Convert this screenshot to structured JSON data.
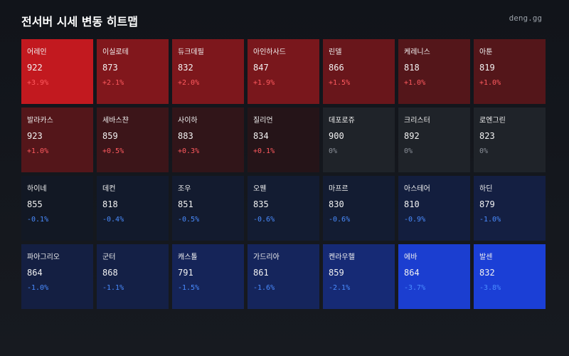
{
  "header": {
    "title": "전서버 시세 변동 히트맵",
    "brand": "deng.gg"
  },
  "tiles": [
    {
      "name": "어레인",
      "price": 922,
      "change": "+3.9%"
    },
    {
      "name": "이실로테",
      "price": 873,
      "change": "+2.1%"
    },
    {
      "name": "듀크데필",
      "price": 832,
      "change": "+2.0%"
    },
    {
      "name": "아인하사드",
      "price": 847,
      "change": "+1.9%"
    },
    {
      "name": "린델",
      "price": 866,
      "change": "+1.5%"
    },
    {
      "name": "케레니스",
      "price": 818,
      "change": "+1.0%"
    },
    {
      "name": "아툰",
      "price": 819,
      "change": "+1.0%"
    },
    {
      "name": "발라카스",
      "price": 923,
      "change": "+1.0%"
    },
    {
      "name": "세바스챤",
      "price": 859,
      "change": "+0.5%"
    },
    {
      "name": "사이하",
      "price": 883,
      "change": "+0.3%"
    },
    {
      "name": "질리언",
      "price": 834,
      "change": "+0.1%"
    },
    {
      "name": "데포로쥬",
      "price": 900,
      "change": "0%"
    },
    {
      "name": "크리스터",
      "price": 892,
      "change": "0%"
    },
    {
      "name": "로엔그린",
      "price": 823,
      "change": "0%"
    },
    {
      "name": "하이네",
      "price": 855,
      "change": "-0.1%"
    },
    {
      "name": "데컨",
      "price": 818,
      "change": "-0.4%"
    },
    {
      "name": "조우",
      "price": 851,
      "change": "-0.5%"
    },
    {
      "name": "오웬",
      "price": 835,
      "change": "-0.6%"
    },
    {
      "name": "마프르",
      "price": 830,
      "change": "-0.6%"
    },
    {
      "name": "아스테어",
      "price": 810,
      "change": "-0.9%"
    },
    {
      "name": "하딘",
      "price": 879,
      "change": "-1.0%"
    },
    {
      "name": "파아그리오",
      "price": 864,
      "change": "-1.0%"
    },
    {
      "name": "군터",
      "price": 868,
      "change": "-1.1%"
    },
    {
      "name": "캐스톨",
      "price": 791,
      "change": "-1.5%"
    },
    {
      "name": "가드리아",
      "price": 861,
      "change": "-1.6%"
    },
    {
      "name": "켄라우헬",
      "price": 859,
      "change": "-2.1%"
    },
    {
      "name": "에바",
      "price": 864,
      "change": "-3.7%"
    },
    {
      "name": "발센",
      "price": 832,
      "change": "-3.8%"
    }
  ]
}
